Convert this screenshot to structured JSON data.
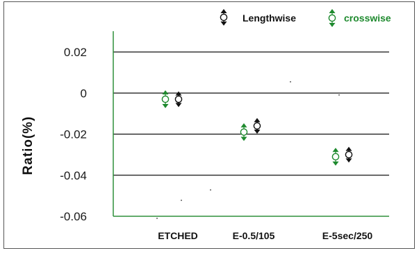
{
  "chart_data": {
    "type": "scatter",
    "title": "",
    "xlabel": "",
    "ylabel": "Ratio(%)",
    "ylim": [
      -0.06,
      0.02
    ],
    "yticks": [
      0.02,
      0,
      -0.02,
      -0.04,
      -0.06
    ],
    "ytick_labels": [
      "0.02",
      "0",
      "-0.02",
      "-0.04",
      "-0.06"
    ],
    "categories": [
      "ETCHED",
      "E-0.5/105",
      "E-5sec/250"
    ],
    "grid": true,
    "legend_position": "top-right",
    "series": [
      {
        "name": "Lengthwise",
        "color": "#111111",
        "values": [
          -0.003,
          -0.016,
          -0.03
        ],
        "err": [
          0.0035,
          0.0035,
          0.0035
        ]
      },
      {
        "name": "crosswise",
        "color": "#1e8a2e",
        "values": [
          -0.003,
          -0.019,
          -0.031
        ],
        "err": [
          0.004,
          0.004,
          0.004
        ]
      }
    ]
  }
}
